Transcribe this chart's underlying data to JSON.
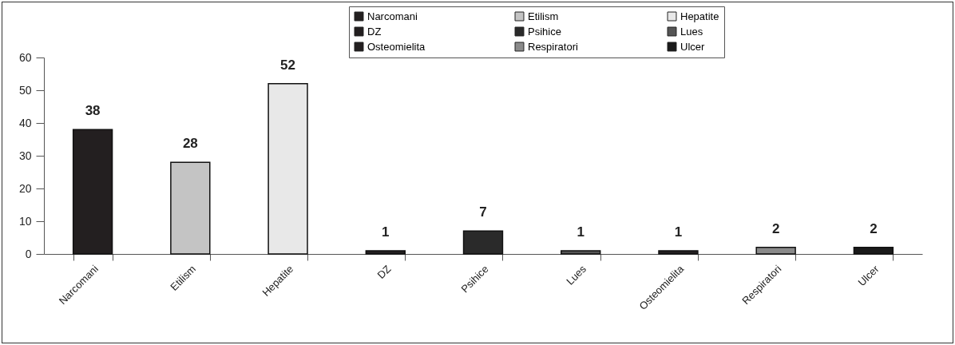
{
  "chart_data": {
    "type": "bar",
    "categories": [
      "Narcomani",
      "Etilism",
      "Hepatite",
      "DZ",
      "Psihice",
      "Lues",
      "Osteomielita",
      "Respiratori",
      "Ulcer"
    ],
    "series": [
      {
        "name": "Narcomani",
        "color": "#231f20",
        "values": [
          38,
          null,
          null,
          null,
          null,
          null,
          null,
          null,
          null
        ]
      },
      {
        "name": "Etilism",
        "color": "#c4c4c4",
        "values": [
          null,
          28,
          null,
          null,
          null,
          null,
          null,
          null,
          null
        ]
      },
      {
        "name": "Hepatite",
        "color": "#e8e8e8",
        "values": [
          null,
          null,
          52,
          null,
          null,
          null,
          null,
          null,
          null
        ]
      },
      {
        "name": "DZ",
        "color": "#231f20",
        "values": [
          null,
          null,
          null,
          1,
          null,
          null,
          null,
          null,
          null
        ]
      },
      {
        "name": "Psihice",
        "color": "#2a2a2a",
        "values": [
          null,
          null,
          null,
          null,
          7,
          null,
          null,
          null,
          null
        ]
      },
      {
        "name": "Lues",
        "color": "#555555",
        "values": [
          null,
          null,
          null,
          null,
          null,
          1,
          null,
          null,
          null
        ]
      },
      {
        "name": "Osteomielita",
        "color": "#231f20",
        "values": [
          null,
          null,
          null,
          null,
          null,
          null,
          1,
          null,
          null
        ]
      },
      {
        "name": "Respiratori",
        "color": "#8a8a8a",
        "values": [
          null,
          null,
          null,
          null,
          null,
          null,
          null,
          2,
          null
        ]
      },
      {
        "name": "Ulcer",
        "color": "#1a1a1a",
        "values": [
          null,
          null,
          null,
          null,
          null,
          null,
          null,
          null,
          2
        ]
      }
    ],
    "ylim": [
      0,
      60
    ],
    "yticks": [
      0,
      10,
      20,
      30,
      40,
      50,
      60
    ],
    "data_labels": true,
    "legend": "top right",
    "grid": false
  }
}
